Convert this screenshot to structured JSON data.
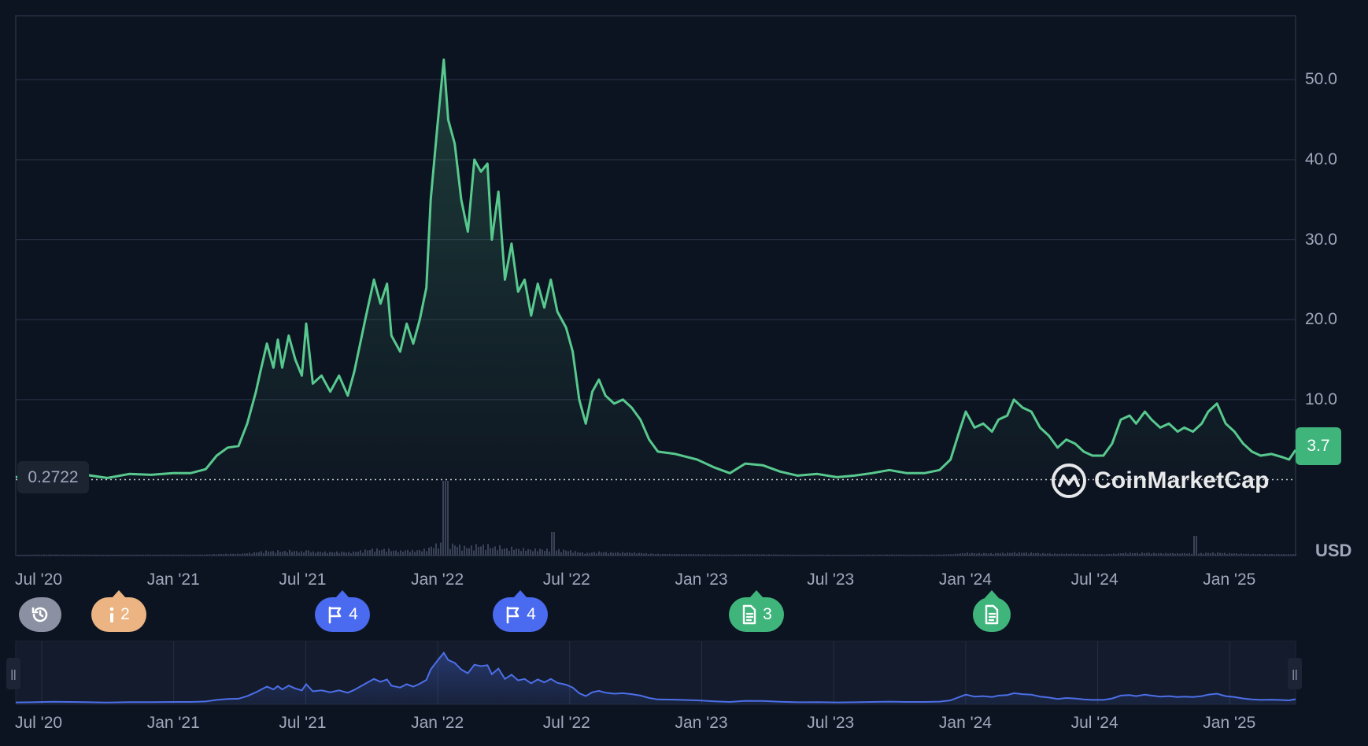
{
  "chart_data": {
    "type": "area",
    "currency": "USD",
    "current_price": "3.7",
    "baseline_price": "0.2722",
    "watermark": "CoinMarketCap",
    "ylim": [
      -9.5,
      58
    ],
    "y_ticks": [
      {
        "value": 10,
        "label": "10.0"
      },
      {
        "value": 20,
        "label": "20.0"
      },
      {
        "value": 30,
        "label": "30.0"
      },
      {
        "value": 40,
        "label": "40.0"
      },
      {
        "value": 50,
        "label": "50.0"
      }
    ],
    "x_ticks": [
      {
        "t": 0.0,
        "label": "Jul '20"
      },
      {
        "t": 6.0,
        "label": "Jan '21"
      },
      {
        "t": 12.0,
        "label": "Jul '21"
      },
      {
        "t": 18.0,
        "label": "Jan '22"
      },
      {
        "t": 24.0,
        "label": "Jul '22"
      },
      {
        "t": 30.0,
        "label": "Jan '23"
      },
      {
        "t": 36.0,
        "label": "Jul '23"
      },
      {
        "t": 42.0,
        "label": "Jan '24"
      },
      {
        "t": 48.0,
        "label": "Jul '24"
      },
      {
        "t": 54.0,
        "label": "Jan '25"
      }
    ],
    "t_range": [
      -1.2,
      57.4
    ],
    "colors": {
      "line": "#58c98e",
      "nav_line": "#4c6fe8",
      "positive": "#3fb57c",
      "grid": "#263042"
    },
    "series": [
      {
        "points": [
          [
            -1.2,
            0.3
          ],
          [
            -0.5,
            0.5
          ],
          [
            0.5,
            1.1
          ],
          [
            1.3,
            0.8
          ],
          [
            2.0,
            0.6
          ],
          [
            3.0,
            0.2
          ],
          [
            4.0,
            0.7
          ],
          [
            5.0,
            0.6
          ],
          [
            6.0,
            0.8
          ],
          [
            6.8,
            0.8
          ],
          [
            7.5,
            1.3
          ],
          [
            8.0,
            3.0
          ],
          [
            8.5,
            4.0
          ],
          [
            9.0,
            4.2
          ],
          [
            9.4,
            7.0
          ],
          [
            9.8,
            11.0
          ],
          [
            10.0,
            13.5
          ],
          [
            10.3,
            17.0
          ],
          [
            10.6,
            14.0
          ],
          [
            10.8,
            17.5
          ],
          [
            11.0,
            14.0
          ],
          [
            11.3,
            18.0
          ],
          [
            11.6,
            15.0
          ],
          [
            11.9,
            13.0
          ],
          [
            12.1,
            19.5
          ],
          [
            12.4,
            12.0
          ],
          [
            12.8,
            13.0
          ],
          [
            13.2,
            11.0
          ],
          [
            13.6,
            13.0
          ],
          [
            14.0,
            10.5
          ],
          [
            14.3,
            13.5
          ],
          [
            14.8,
            20.0
          ],
          [
            15.2,
            25.0
          ],
          [
            15.5,
            22.0
          ],
          [
            15.8,
            24.5
          ],
          [
            16.0,
            18.0
          ],
          [
            16.4,
            16.0
          ],
          [
            16.7,
            19.5
          ],
          [
            17.0,
            17.0
          ],
          [
            17.3,
            20.0
          ],
          [
            17.6,
            24.0
          ],
          [
            17.8,
            35.0
          ],
          [
            18.1,
            44.0
          ],
          [
            18.4,
            52.5
          ],
          [
            18.6,
            45.0
          ],
          [
            18.9,
            42.0
          ],
          [
            19.2,
            35.0
          ],
          [
            19.5,
            31.0
          ],
          [
            19.8,
            40.0
          ],
          [
            20.1,
            38.5
          ],
          [
            20.4,
            39.5
          ],
          [
            20.6,
            30.0
          ],
          [
            20.9,
            36.0
          ],
          [
            21.2,
            25.0
          ],
          [
            21.5,
            29.5
          ],
          [
            21.8,
            23.5
          ],
          [
            22.1,
            25.0
          ],
          [
            22.4,
            20.5
          ],
          [
            22.7,
            24.5
          ],
          [
            23.0,
            21.5
          ],
          [
            23.3,
            25.0
          ],
          [
            23.6,
            21.0
          ],
          [
            24.0,
            19.0
          ],
          [
            24.3,
            16.0
          ],
          [
            24.6,
            10.0
          ],
          [
            24.9,
            7.0
          ],
          [
            25.2,
            11.0
          ],
          [
            25.5,
            12.5
          ],
          [
            25.8,
            10.5
          ],
          [
            26.2,
            9.5
          ],
          [
            26.6,
            10.0
          ],
          [
            27.0,
            9.0
          ],
          [
            27.4,
            7.5
          ],
          [
            27.8,
            5.0
          ],
          [
            28.2,
            3.5
          ],
          [
            29.0,
            3.2
          ],
          [
            30.0,
            2.5
          ],
          [
            30.8,
            1.5
          ],
          [
            31.5,
            0.8
          ],
          [
            32.2,
            2.0
          ],
          [
            33.0,
            1.8
          ],
          [
            33.8,
            1.0
          ],
          [
            34.6,
            0.5
          ],
          [
            35.5,
            0.7
          ],
          [
            36.4,
            0.3
          ],
          [
            37.2,
            0.5
          ],
          [
            38.0,
            0.8
          ],
          [
            38.8,
            1.2
          ],
          [
            39.6,
            0.8
          ],
          [
            40.4,
            0.8
          ],
          [
            41.1,
            1.2
          ],
          [
            41.6,
            2.5
          ],
          [
            42.0,
            6.0
          ],
          [
            42.3,
            8.5
          ],
          [
            42.7,
            6.5
          ],
          [
            43.1,
            7.0
          ],
          [
            43.5,
            6.0
          ],
          [
            43.8,
            7.5
          ],
          [
            44.2,
            8.0
          ],
          [
            44.5,
            10.0
          ],
          [
            44.9,
            9.0
          ],
          [
            45.3,
            8.5
          ],
          [
            45.7,
            6.5
          ],
          [
            46.1,
            5.5
          ],
          [
            46.5,
            4.0
          ],
          [
            46.9,
            5.0
          ],
          [
            47.3,
            4.5
          ],
          [
            47.7,
            3.5
          ],
          [
            48.1,
            3.0
          ],
          [
            48.6,
            3.0
          ],
          [
            49.0,
            4.5
          ],
          [
            49.4,
            7.5
          ],
          [
            49.8,
            8.0
          ],
          [
            50.1,
            7.0
          ],
          [
            50.5,
            8.5
          ],
          [
            50.8,
            7.5
          ],
          [
            51.2,
            6.5
          ],
          [
            51.6,
            7.0
          ],
          [
            52.0,
            6.0
          ],
          [
            52.3,
            6.5
          ],
          [
            52.7,
            6.0
          ],
          [
            53.1,
            7.0
          ],
          [
            53.4,
            8.5
          ],
          [
            53.8,
            9.5
          ],
          [
            54.2,
            7.0
          ],
          [
            54.6,
            6.0
          ],
          [
            55.0,
            4.5
          ],
          [
            55.4,
            3.5
          ],
          [
            55.8,
            3.0
          ],
          [
            56.3,
            3.2
          ],
          [
            56.8,
            2.8
          ],
          [
            57.1,
            2.5
          ],
          [
            57.4,
            3.7
          ]
        ]
      }
    ]
  },
  "event_markers": [
    {
      "icon": "history-icon",
      "count": "",
      "color": "#8b91a2"
    },
    {
      "icon": "info-icon",
      "count": "2",
      "color": "#ebb482"
    },
    {
      "icon": "flag-icon",
      "count": "4",
      "color": "#4a6af0"
    },
    {
      "icon": "flag-icon",
      "count": "4",
      "color": "#4a6af0"
    },
    {
      "icon": "document-icon",
      "count": "3",
      "color": "#3fb57c"
    },
    {
      "icon": "document-icon",
      "count": "",
      "color": "#3fb57c"
    }
  ]
}
